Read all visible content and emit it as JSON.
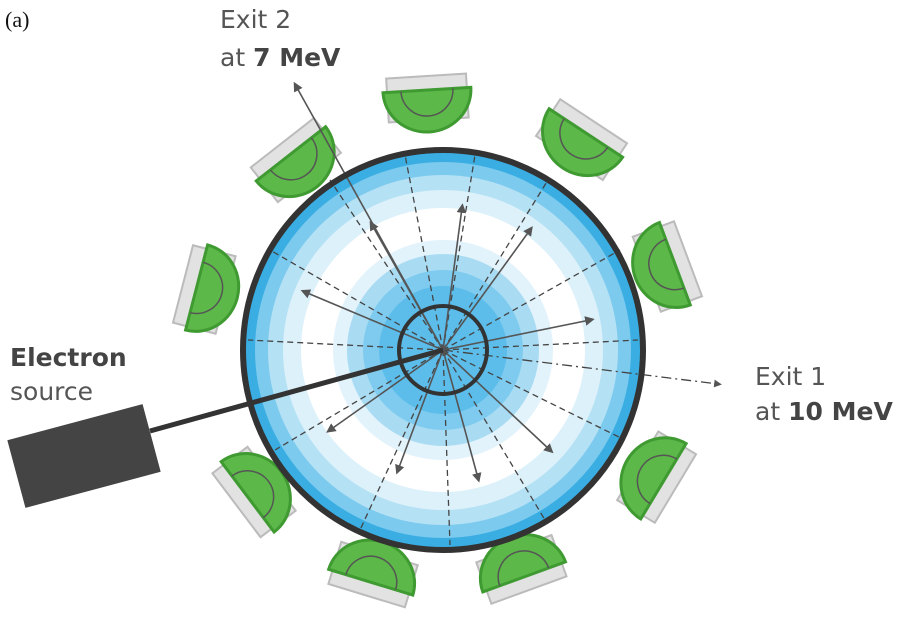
{
  "panel_label": "(a)",
  "exit_2": {
    "name": "Exit 2",
    "at": "at",
    "energy": "7 MeV"
  },
  "electron_source": {
    "line1": "Electron",
    "line2": "source"
  },
  "exit_1": {
    "name": "Exit 1",
    "at": "at",
    "energy": "10 MeV"
  }
}
